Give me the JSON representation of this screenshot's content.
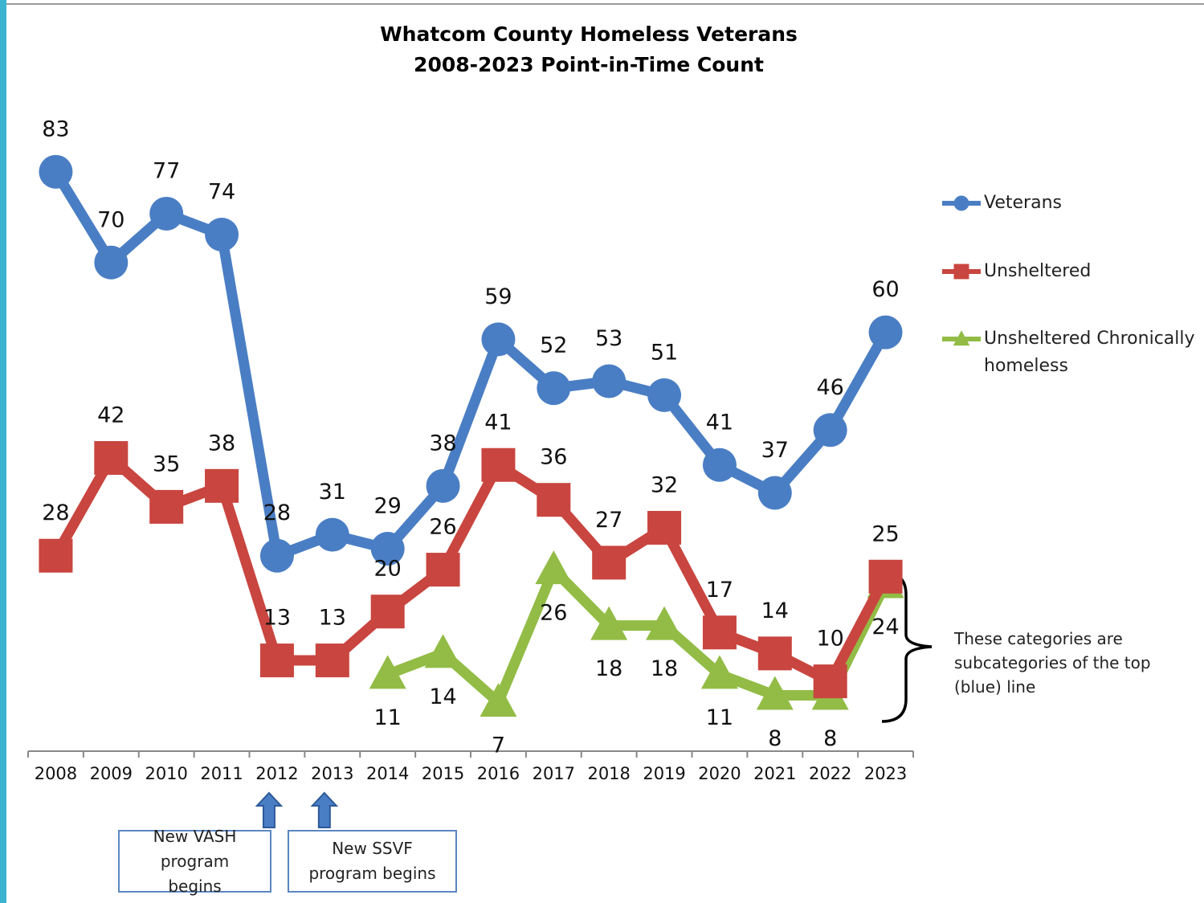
{
  "chart_data": {
    "type": "line",
    "title": "Whatcom County Homeless Veterans",
    "subtitle": "2008-2023 Point-in-Time Count",
    "categories": [
      "2008",
      "2009",
      "2010",
      "2011",
      "2012",
      "2013",
      "2014",
      "2015",
      "2016",
      "2017",
      "2018",
      "2019",
      "2020",
      "2021",
      "2022",
      "2023"
    ],
    "series": [
      {
        "name": "Veterans",
        "color": "#4a7ec4",
        "marker": "circle",
        "values": [
          83,
          70,
          77,
          74,
          28,
          31,
          29,
          38,
          59,
          52,
          53,
          51,
          41,
          37,
          46,
          60
        ]
      },
      {
        "name": "Unsheltered",
        "color": "#c9453f",
        "marker": "square",
        "values": [
          28,
          42,
          35,
          38,
          13,
          13,
          20,
          26,
          41,
          36,
          27,
          32,
          17,
          14,
          10,
          25
        ]
      },
      {
        "name": "Unsheltered Chronically homeless",
        "color": "#92bc45",
        "marker": "triangle",
        "values": [
          null,
          null,
          null,
          null,
          null,
          null,
          11,
          14,
          7,
          26,
          18,
          18,
          11,
          8,
          8,
          24
        ]
      }
    ],
    "ylim": [
      0,
      90
    ],
    "legend": "right",
    "annotations": [
      {
        "text": "New VASH program begins",
        "x": "2012"
      },
      {
        "text": "New SSVF program begins",
        "x": "2013"
      }
    ],
    "note": "These categories are subcategories of the top (blue) line"
  }
}
